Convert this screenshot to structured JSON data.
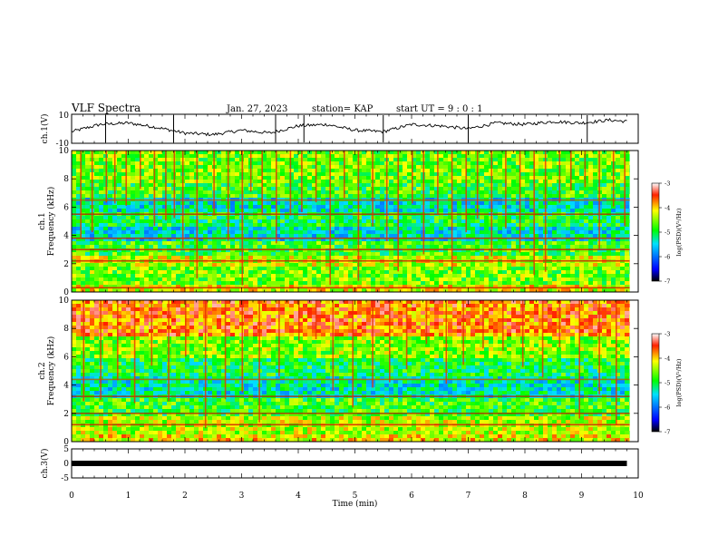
{
  "header": {
    "title": "VLF Spectra",
    "date": "Jan. 27, 2023",
    "station": "station= KAP",
    "start": "start  UT =   9 : 0  : 1"
  },
  "chart_data": [
    {
      "type": "line",
      "name": "ch1-waveform",
      "ylabel": "ch.1(V)",
      "ylim": [
        -10,
        10
      ],
      "yticks": [
        "10",
        "-10"
      ],
      "xlim": [
        0,
        10
      ],
      "x": [
        0,
        0.5,
        1,
        1.5,
        2,
        2.5,
        3,
        3.5,
        4,
        4.5,
        5,
        5.5,
        6,
        6.5,
        7,
        7.5,
        8,
        8.5,
        9,
        9.5,
        9.8
      ],
      "y": [
        -2,
        3,
        4,
        1,
        -3,
        -4,
        -1,
        -3,
        2,
        3,
        -1,
        -2,
        3,
        2,
        0,
        4,
        3,
        5,
        4,
        6,
        5
      ]
    },
    {
      "type": "heatmap",
      "name": "ch1-spectrogram",
      "ylabel": "ch.1\nFrequency (kHz)",
      "ylabel_lines": [
        "ch.1",
        "Frequency (kHz)"
      ],
      "ylim": [
        0,
        10
      ],
      "yticks": [
        "0",
        "2",
        "4",
        "6",
        "8",
        "10"
      ],
      "xlim": [
        0,
        10
      ],
      "colorbar": {
        "label": "log(PSD)(V²/Hz)",
        "range": [
          -7,
          -3
        ],
        "ticks": [
          "-3",
          "-4",
          "-5",
          "-6",
          "-7"
        ]
      },
      "band_levels": [
        {
          "f": [
            0.0,
            0.4
          ],
          "level": 0.7
        },
        {
          "f": [
            0.4,
            1.8
          ],
          "level": 0.6
        },
        {
          "f": [
            1.8,
            2.6
          ],
          "level": 0.68
        },
        {
          "f": [
            2.6,
            3.7
          ],
          "level": 0.55
        },
        {
          "f": [
            3.7,
            4.6
          ],
          "level": 0.4
        },
        {
          "f": [
            4.6,
            5.6
          ],
          "level": 0.5
        },
        {
          "f": [
            5.6,
            6.6
          ],
          "level": 0.4
        },
        {
          "f": [
            6.6,
            7.6
          ],
          "level": 0.55
        },
        {
          "f": [
            7.6,
            10.0
          ],
          "level": 0.6
        }
      ],
      "lines": [
        {
          "f": 0.3,
          "color": "#cc2200"
        },
        {
          "f": 2.2,
          "color": "#cc2200"
        },
        {
          "f": 3.0,
          "color": "#cc2200"
        },
        {
          "f": 3.8,
          "color": "#cc2200"
        },
        {
          "f": 5.5,
          "color": "#aa3300"
        },
        {
          "f": 6.5,
          "color": "#aa6600"
        }
      ],
      "spikes_min": [
        0.15,
        0.35,
        0.6,
        0.75,
        0.95,
        1.2,
        1.45,
        1.65,
        1.8,
        1.95,
        2.2,
        2.5,
        2.75,
        3.0,
        3.15,
        3.35,
        3.6,
        3.85,
        4.05,
        4.3,
        4.55,
        4.8,
        5.05,
        5.3,
        5.55,
        5.75,
        6.0,
        6.2,
        6.45,
        6.7,
        6.95,
        7.15,
        7.4,
        7.65,
        7.9,
        8.15,
        8.35,
        8.6,
        8.8,
        9.05,
        9.3,
        9.55,
        9.75
      ]
    },
    {
      "type": "heatmap",
      "name": "ch2-spectrogram",
      "ylabel": "ch.2\nFrequency (kHz)",
      "ylabel_lines": [
        "ch.2",
        "Frequency (kHz)"
      ],
      "ylim": [
        0,
        10
      ],
      "yticks": [
        "0",
        "2",
        "4",
        "6",
        "8",
        "10"
      ],
      "xlim": [
        0,
        10
      ],
      "colorbar": {
        "label": "log(PSD)(V²/Hz)",
        "range": [
          -7,
          -3
        ],
        "ticks": [
          "-3",
          "-4",
          "-5",
          "-6",
          "-7"
        ]
      },
      "band_levels": [
        {
          "f": [
            0.0,
            0.6
          ],
          "level": 0.72
        },
        {
          "f": [
            0.6,
            1.8
          ],
          "level": 0.66
        },
        {
          "f": [
            1.8,
            3.0
          ],
          "level": 0.55
        },
        {
          "f": [
            3.0,
            4.5
          ],
          "level": 0.42
        },
        {
          "f": [
            4.5,
            6.0
          ],
          "level": 0.5
        },
        {
          "f": [
            6.0,
            7.5
          ],
          "level": 0.62
        },
        {
          "f": [
            7.5,
            10.0
          ],
          "level": 0.82
        }
      ],
      "lines": [
        {
          "f": 1.2,
          "color": "#cc2200"
        },
        {
          "f": 2.0,
          "color": "#aa3300"
        },
        {
          "f": 3.2,
          "color": "#aa3300"
        },
        {
          "f": 4.4,
          "color": "#aa6600"
        }
      ],
      "spikes_min": [
        0.2,
        0.5,
        0.8,
        1.1,
        1.4,
        1.7,
        2.0,
        2.35,
        2.7,
        3.0,
        3.3,
        3.65,
        4.0,
        4.3,
        4.6,
        4.95,
        5.3,
        5.6,
        5.9,
        6.25,
        6.6,
        6.9,
        7.25,
        7.6,
        7.95,
        8.3,
        8.6,
        8.95,
        9.3,
        9.6
      ]
    },
    {
      "type": "line",
      "name": "ch3-waveform",
      "ylabel": "ch.3(V)",
      "ylim": [
        -5,
        5
      ],
      "yticks": [
        "5",
        "0",
        "-5"
      ],
      "xlim": [
        0,
        10
      ],
      "x": [
        0,
        9.8
      ],
      "y": [
        0,
        0
      ],
      "xlabel": "Time  (min)",
      "xticks": [
        "0",
        "1",
        "2",
        "3",
        "4",
        "5",
        "6",
        "7",
        "8",
        "9",
        "10"
      ]
    }
  ]
}
